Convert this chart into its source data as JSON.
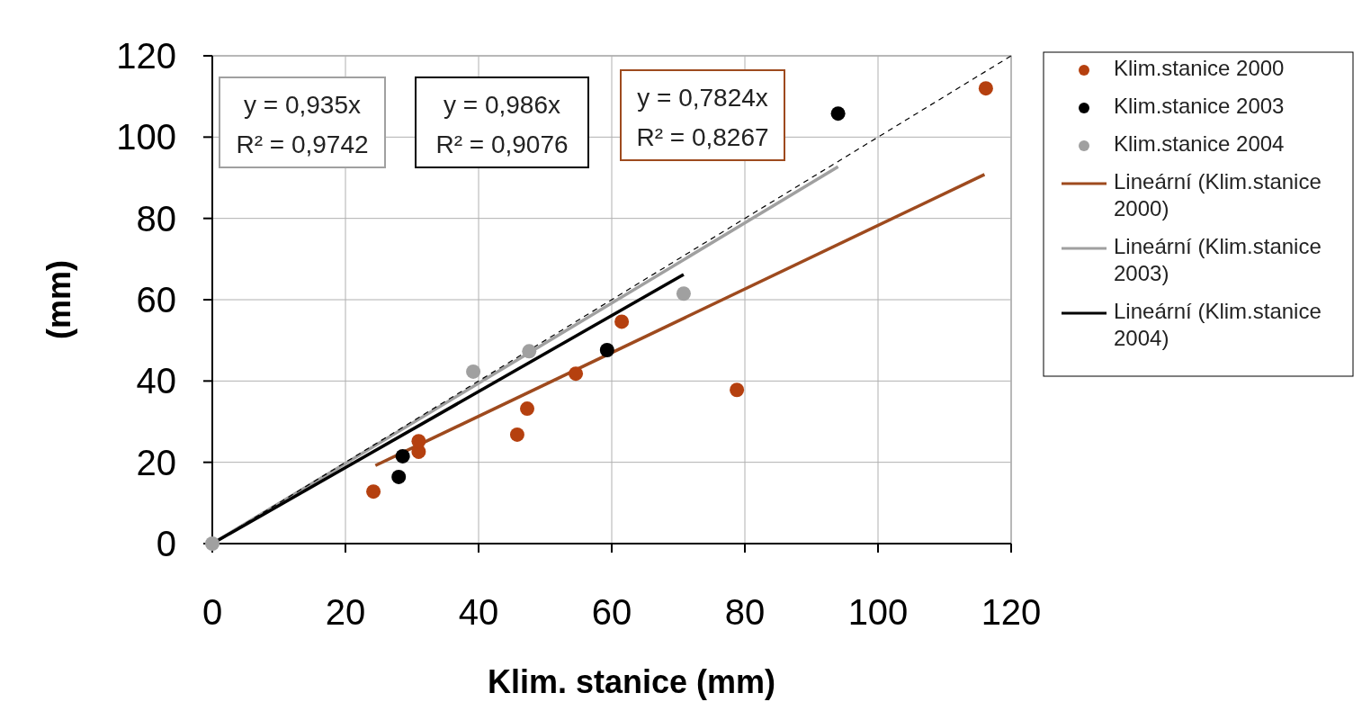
{
  "chart_data": {
    "type": "scatter",
    "xlabel": "Klim. stanice (mm)",
    "ylabel": "(mm)",
    "xlim": [
      0,
      120
    ],
    "ylim": [
      0,
      120
    ],
    "xticks": [
      0,
      20,
      40,
      60,
      80,
      100,
      120
    ],
    "yticks": [
      0,
      20,
      40,
      60,
      80,
      100,
      120
    ],
    "grid": true,
    "legend": "right",
    "marker": "circle",
    "annotations": [
      "y = 0,935x\nR² = 0,9742",
      "y = 0,986x\nR² = 0,9076",
      "y = 0,7824x\nR² = 0,8267"
    ],
    "series": [
      {
        "name": "Klim.stanice 2000",
        "color": "#b5400f",
        "x": [
          24.2,
          31,
          31,
          45.8,
          47.3,
          54.6,
          61.5,
          78.8,
          116.2
        ],
        "values": [
          12.8,
          22.6,
          25.2,
          26.8,
          33.2,
          41.8,
          54.6,
          37.8,
          112
        ]
      },
      {
        "name": "Klim.stanice 2003",
        "color": "#000000",
        "x": [
          28,
          28.6,
          59.3,
          94
        ],
        "values": [
          16.4,
          21.5,
          47.6,
          105.8
        ]
      },
      {
        "name": "Klim.stanice 2004",
        "color": "#a0a0a0",
        "x": [
          0,
          39.2,
          47.6,
          70.8
        ],
        "values": [
          0,
          42.3,
          47.3,
          61.5
        ]
      },
      {
        "name": "Lineární (Klim.stanice 2000)",
        "type": "line",
        "marker": "none",
        "color": "#9e4a1e",
        "x": [
          24.5,
          116
        ],
        "values": [
          19.2,
          90.8
        ]
      },
      {
        "name": "Lineární (Klim.stanice 2003)",
        "type": "line",
        "marker": "none",
        "color": "#a0a0a0",
        "x": [
          0,
          94
        ],
        "values": [
          0,
          92.7
        ]
      },
      {
        "name": "Lineární (Klim.stanice 2004)",
        "type": "line",
        "marker": "none",
        "color": "#000000",
        "x": [
          0,
          70.8
        ],
        "values": [
          0,
          66.2
        ]
      },
      {
        "type": "line",
        "marker": "none",
        "color": "#000000",
        "line_style": "dashed",
        "x": [
          0,
          120
        ],
        "values": [
          0,
          120
        ]
      }
    ]
  }
}
